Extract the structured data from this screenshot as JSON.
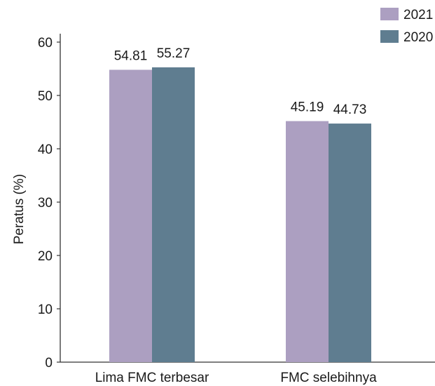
{
  "chart_data": {
    "type": "bar",
    "title": "",
    "xlabel": "",
    "ylabel": "Peratus (%)",
    "categories": [
      "Lima FMC terbesar",
      "FMC selebihnya"
    ],
    "series": [
      {
        "name": "2021",
        "color": "#ac9fc1",
        "values": [
          54.81,
          45.19
        ],
        "labels": [
          "54.81",
          "45.19"
        ]
      },
      {
        "name": "2020",
        "color": "#5f7d90",
        "values": [
          55.27,
          44.73
        ],
        "labels": [
          "55.27",
          "44.73"
        ]
      }
    ],
    "ylim": [
      0,
      60
    ],
    "yticks": [
      0,
      10,
      20,
      30,
      40,
      50,
      60
    ],
    "ytick_labels": [
      "0",
      "10",
      "20",
      "30",
      "40",
      "50",
      "60"
    ],
    "grid": false,
    "legend_position": "top-right"
  }
}
